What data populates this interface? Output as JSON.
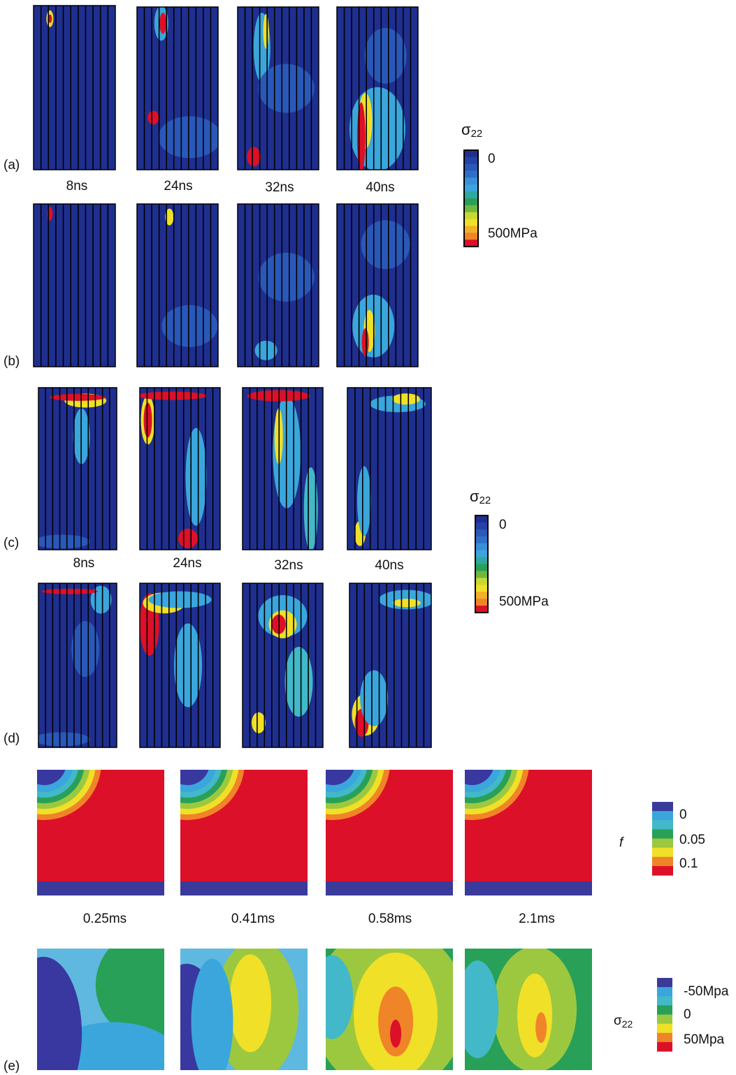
{
  "labels": [
    "(a)",
    "(b)",
    "(c)",
    "(d)",
    "(e)"
  ],
  "times_ab": [
    "8ns",
    "24ns",
    "32ns",
    "40ns"
  ],
  "times_cd": [
    "8ns",
    "24ns",
    "32ns",
    "40ns"
  ],
  "times_e": [
    "0.25ms",
    "0.41ms",
    "0.58ms",
    "2.1ms"
  ],
  "colorbars": [
    {
      "symbol": "σ",
      "subscript": "22",
      "ticks": [
        "0",
        "500MPa"
      ]
    },
    {
      "symbol": "σ",
      "subscript": "22",
      "ticks": [
        "0",
        "500MPa"
      ]
    },
    {
      "symbol": "f",
      "ticks": [
        "0",
        "0.05",
        "0.1"
      ]
    },
    {
      "symbol": "σ",
      "subscript": "22",
      "ticks": [
        "-50Mpa",
        "0",
        "50Mpa"
      ]
    }
  ]
}
